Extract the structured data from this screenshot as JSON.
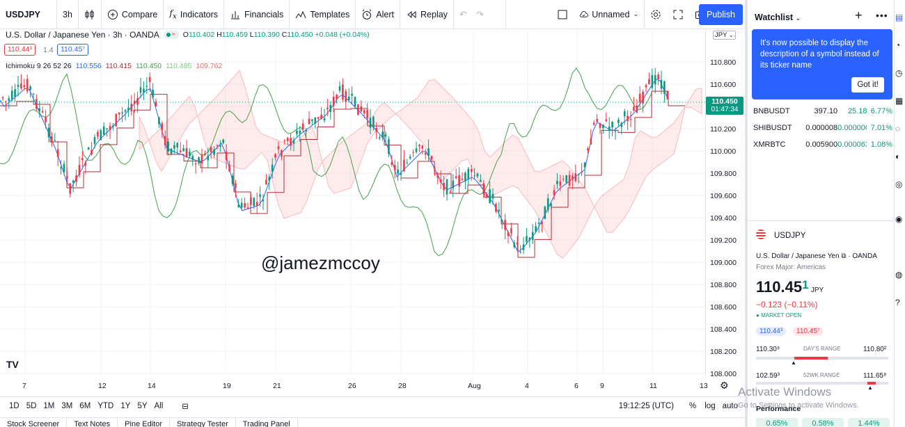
{
  "toolbar": {
    "symbol": "USDJPY",
    "interval": "3h",
    "compare": "Compare",
    "indicators": "Indicators",
    "financials": "Financials",
    "templates": "Templates",
    "alert": "Alert",
    "replay": "Replay",
    "layout_name": "Unnamed",
    "publish": "Publish"
  },
  "legend": {
    "title": "U.S. Dollar / Japanese Yen · 3h · OANDA",
    "o_label": "O",
    "o": "110.402",
    "h_label": "H",
    "h": "110.459",
    "l_label": "L",
    "l": "110.390",
    "c_label": "C",
    "c": "110.450",
    "change": "+0.048 (+0.04%)",
    "bid": "110.44³",
    "spread": "1.4",
    "ask": "110.45⁷"
  },
  "ichimoku": {
    "label": "Ichimoku 9 26 52 26",
    "v1": "110.556",
    "v2": "110.415",
    "v3": "110.450",
    "v4": "110.485",
    "v5": "109.762"
  },
  "currency": "JPY",
  "price_tag": {
    "price": "110.450",
    "countdown": "01:47:34"
  },
  "y_ticks": [
    "110.800",
    "110.600",
    "110.400",
    "110.200",
    "110.000",
    "109.800",
    "109.600",
    "109.400",
    "109.200",
    "109.000",
    "108.800",
    "108.600",
    "108.400",
    "108.200",
    "108.000"
  ],
  "x_ticks": [
    "7",
    "12",
    "14",
    "19",
    "21",
    "26",
    "28",
    "Aug",
    "4",
    "6",
    "9",
    "11",
    "13"
  ],
  "watermark": "@jamezmccoy",
  "bottom": {
    "timeframes": [
      "1D",
      "5D",
      "1M",
      "3M",
      "6M",
      "YTD",
      "1Y",
      "5Y",
      "All"
    ],
    "clock": "19:12:25 (UTC)",
    "percent": "%",
    "log": "log",
    "auto": "auto"
  },
  "panels": [
    "Stock Screener",
    "Text Notes",
    "Pine Editor",
    "Strategy Tester",
    "Trading Panel"
  ],
  "watchlist": {
    "title": "Watchlist",
    "tooltip": "It's now possible to display the description of a symbol instead of its ticker name",
    "got_it": "Got it!",
    "rows": [
      {
        "sym": "BNBUSDT",
        "last": "397.10",
        "chg": "25.18",
        "pct": "6.77%"
      },
      {
        "sym": "SHIBUSDT",
        "last": "0.000008",
        "chg": "0.000000",
        "pct": "7.01%"
      },
      {
        "sym": "XMRBTC",
        "last": "0.005900",
        "chg": "0.000063",
        "pct": "1.08%"
      }
    ]
  },
  "details": {
    "symbol": "USDJPY",
    "name": "U.S. Dollar / Japanese Yen",
    "exchange": "OANDA",
    "category": "Forex Major: Americas",
    "price": "110.45",
    "price_sup": "1",
    "currency": "JPY",
    "change": "−0.123 (−0.11%)",
    "status": "MARKET OPEN",
    "bid": "110.44³",
    "ask": "110.45⁷",
    "day_low": "110.30⁹",
    "day_label": "DAY'S RANGE",
    "day_high": "110.80²",
    "wk_low": "102.59³",
    "wk_label": "52WK RANGE",
    "wk_high": "111.65⁸",
    "perf_label": "Performance",
    "perf": [
      "0.65%",
      "0.58%",
      "1.44%"
    ]
  },
  "os_overlay": {
    "line1": "Activate Windows",
    "line2": "Go to Settings to activate Windows."
  },
  "colors": {
    "up": "#089981",
    "down": "#f23645",
    "accent": "#2962ff"
  }
}
